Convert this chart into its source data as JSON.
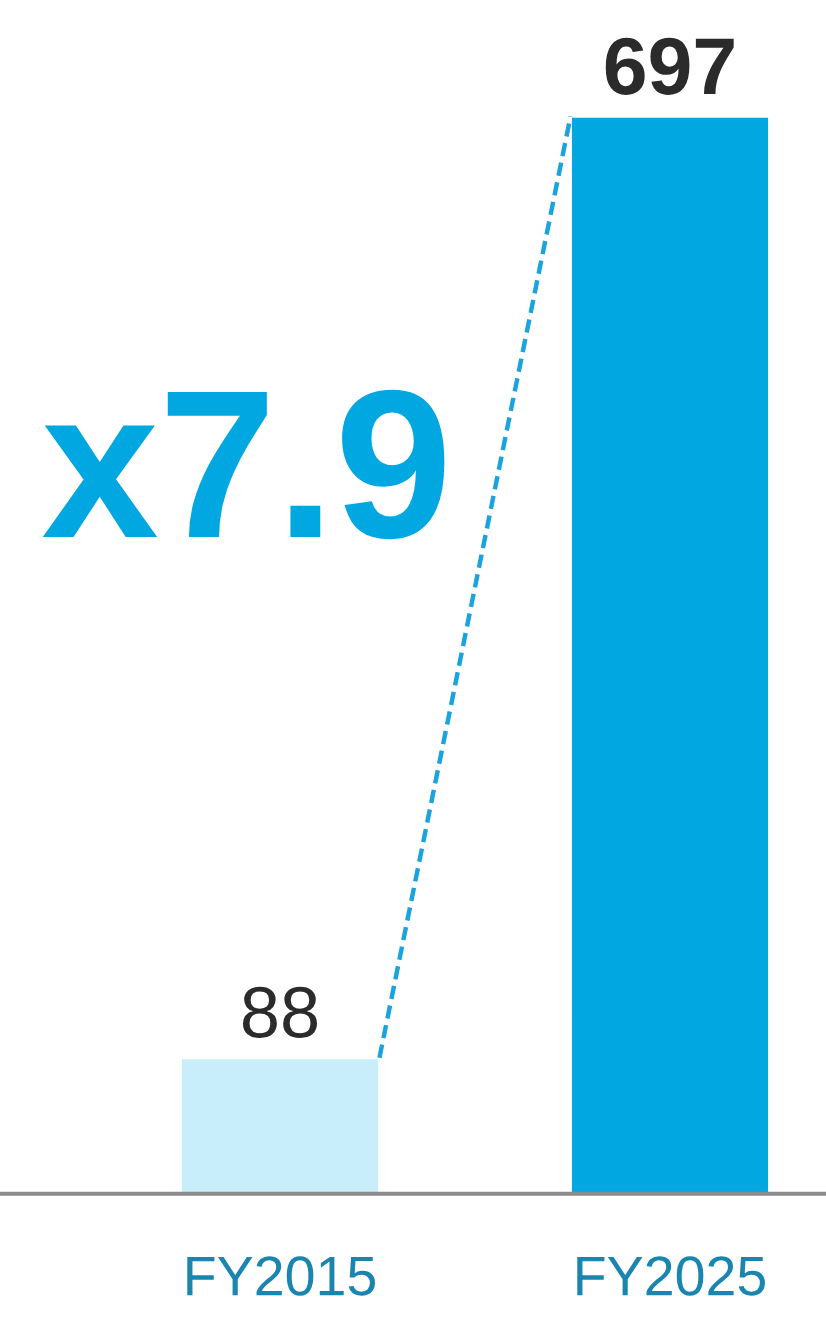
{
  "chart_data": {
    "type": "bar",
    "categories": [
      "FY2015",
      "FY2025"
    ],
    "series": [
      {
        "colors": [
          "#c9eefb",
          "#00a7e1"
        ],
        "values": [
          88,
          697
        ],
        "value_labels": [
          "88",
          "697"
        ]
      }
    ],
    "annotations": [
      "x7.9"
    ]
  }
}
